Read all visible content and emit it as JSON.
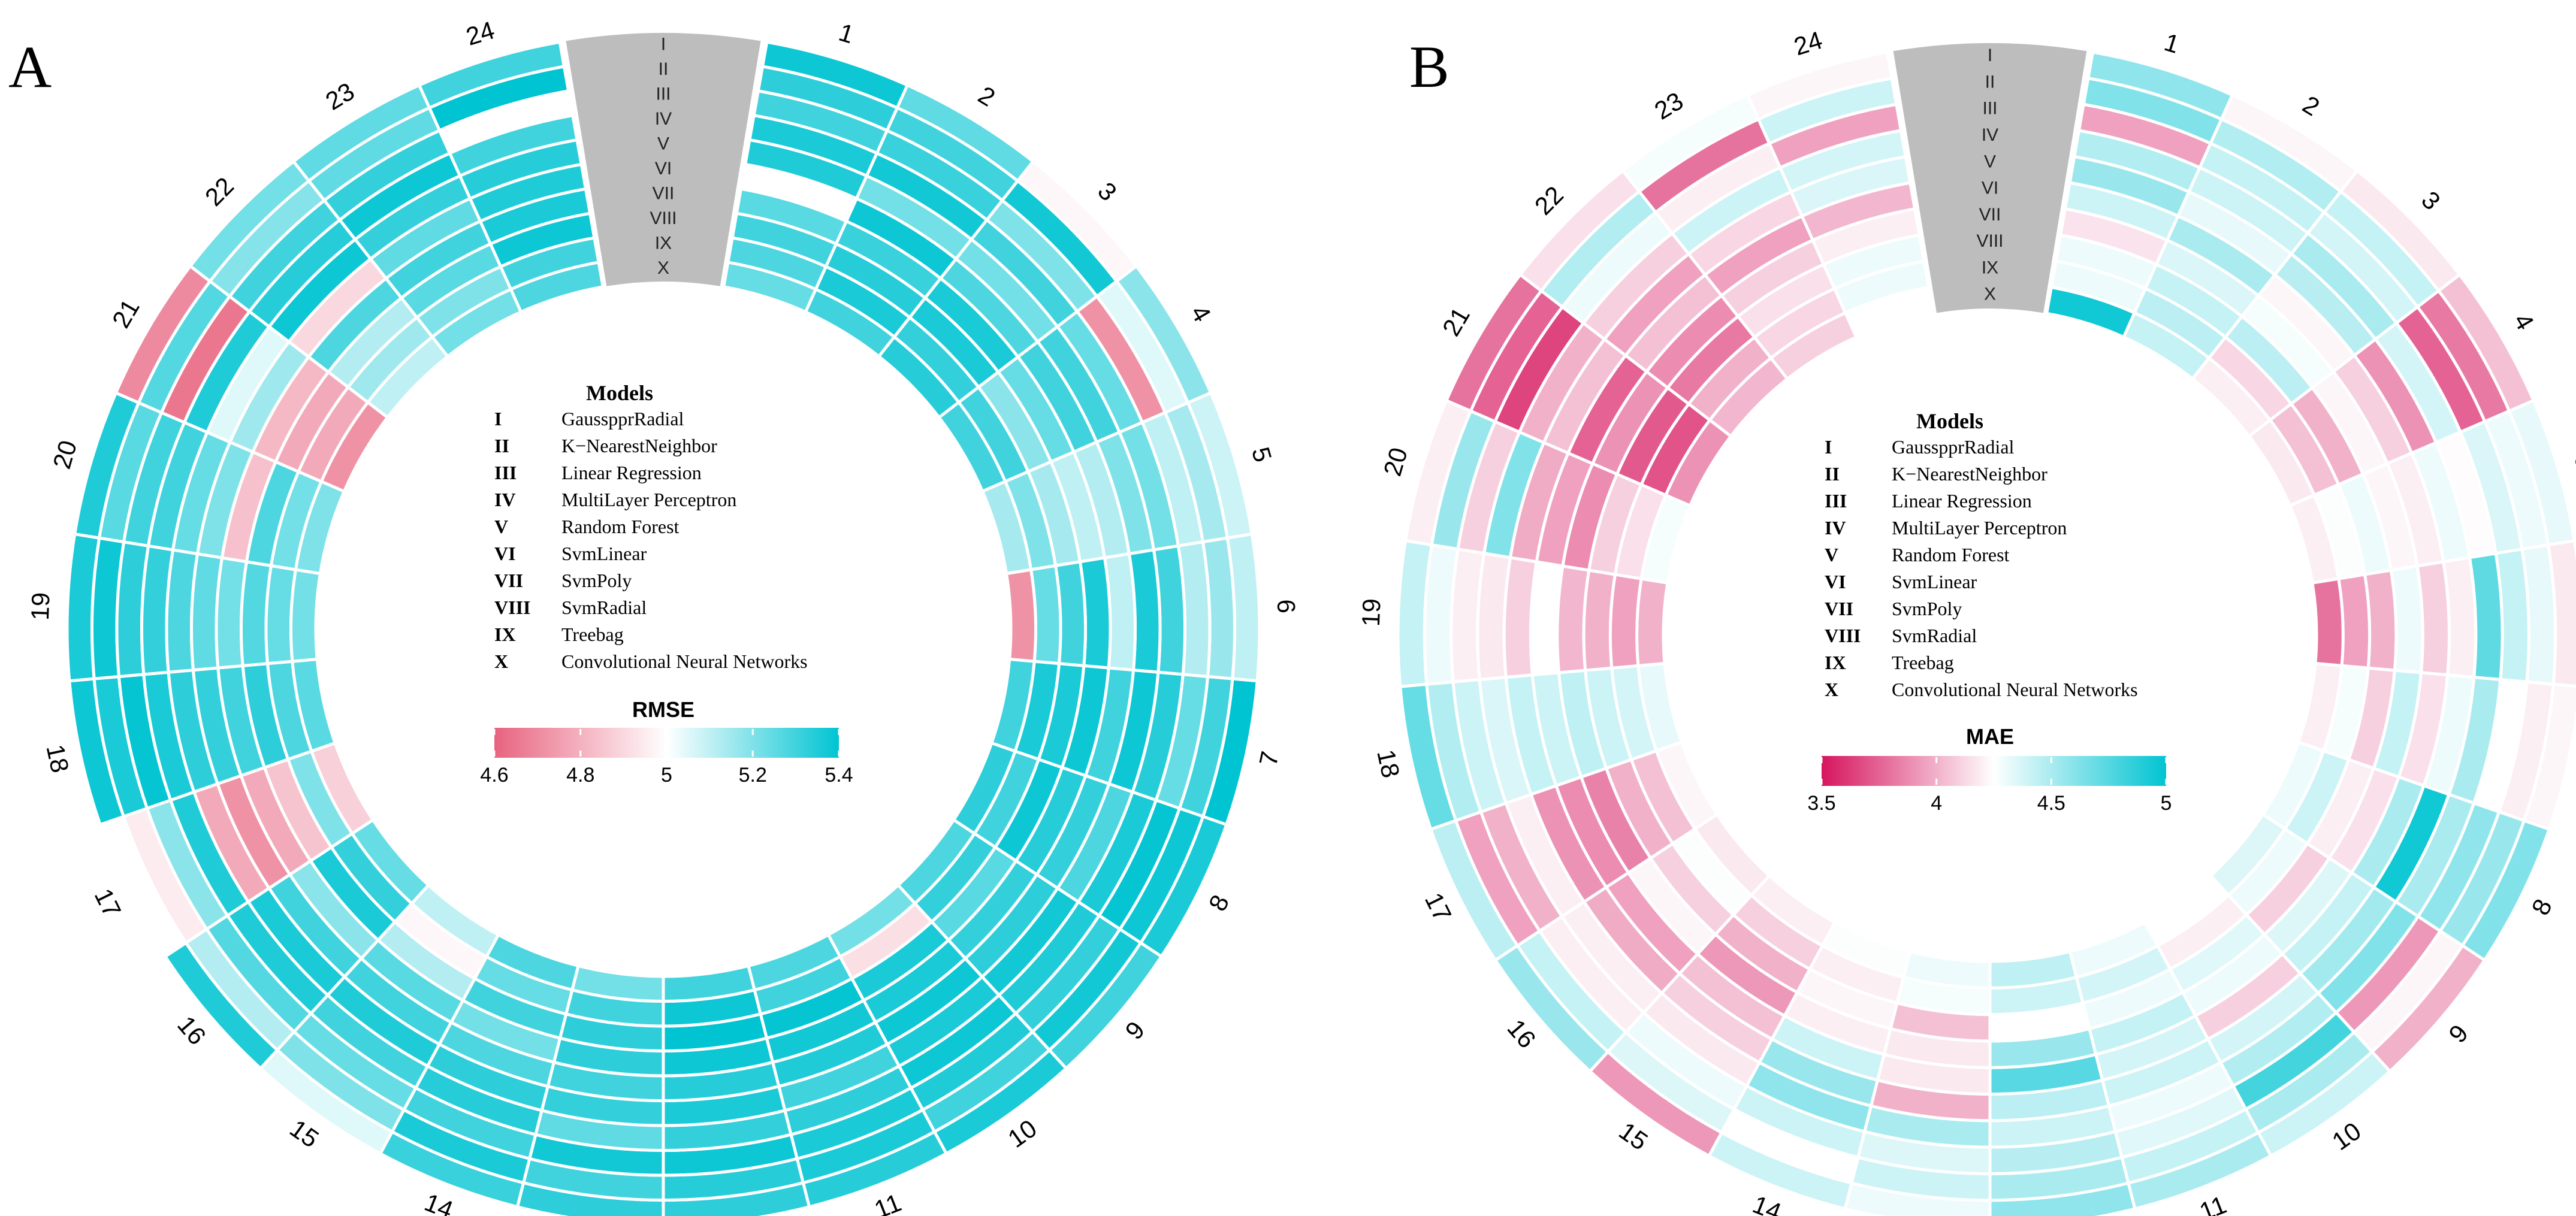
{
  "figure": {
    "panels": [
      {
        "letter": "A",
        "metric": "RMSE",
        "legend_title": "Models",
        "colorbar": {
          "min": 4.6,
          "max": 5.4,
          "mid": 5.0,
          "ticks": [
            4.6,
            4.8,
            5,
            5.2,
            5.4
          ],
          "tick_labels": [
            "4.6",
            "4.8",
            "5",
            "5.2",
            "5.4"
          ],
          "low_color": "#e8637f",
          "mid_color": "#ffffff",
          "high_color": "#00c4d2"
        }
      },
      {
        "letter": "B",
        "metric": "MAE",
        "legend_title": "Models",
        "colorbar": {
          "min": 3.5,
          "max": 5.0,
          "mid": 4.25,
          "ticks": [
            3.5,
            4,
            4.5,
            5
          ],
          "tick_labels": [
            "3.5",
            "4",
            "4.5",
            "5"
          ],
          "low_color": "#d6155e",
          "mid_color": "#ffffff",
          "high_color": "#00c4d2"
        }
      }
    ]
  },
  "models": [
    {
      "key": "I",
      "name": "GausspprRadial"
    },
    {
      "key": "II",
      "name": "K−NearestNeighbor"
    },
    {
      "key": "III",
      "name": "Linear  Regression"
    },
    {
      "key": "IV",
      "name": "MultiLayer  Perceptron"
    },
    {
      "key": "V",
      "name": "Random   Forest"
    },
    {
      "key": "VI",
      "name": "SvmLinear"
    },
    {
      "key": "VII",
      "name": "SvmPoly"
    },
    {
      "key": "VIII",
      "name": "SvmRadial"
    },
    {
      "key": "IX",
      "name": "Treebag"
    },
    {
      "key": "X",
      "name": "Convolutional  Neural  Networks"
    }
  ],
  "chart_data": [
    {
      "type": "heatmap",
      "layout": "circular",
      "title": "A",
      "metric": "RMSE",
      "categories": [
        "1",
        "2",
        "3",
        "4",
        "5",
        "6",
        "7",
        "8",
        "9",
        "10",
        "11",
        "12",
        "13",
        "14",
        "15",
        "16",
        "17",
        "18",
        "19",
        "20",
        "21",
        "22",
        "23",
        "24"
      ],
      "series_order": "outer ring to inner ring",
      "series": [
        {
          "name": "I",
          "values": [
            5.38,
            5.25,
            4.98,
            5.18,
            5.08,
            5.1,
            5.4,
            5.36,
            5.3,
            5.36,
            5.34,
            5.33,
            5.33,
            5.31,
            5.05,
            5.35,
            5.0,
            5.38,
            5.36,
            5.35,
            4.7,
            5.22,
            5.25,
            5.3
          ]
        },
        {
          "name": "II",
          "values": [
            5.33,
            5.3,
            5.37,
            5.05,
            5.14,
            5.16,
            5.3,
            5.38,
            5.37,
            5.3,
            5.36,
            5.34,
            5.3,
            5.36,
            5.2,
            5.12,
            4.95,
            5.36,
            5.38,
            5.26,
            5.27,
            5.19,
            5.25,
            5.4
          ]
        },
        {
          "name": "III",
          "values": [
            5.3,
            5.31,
            5.2,
            4.72,
            5.1,
            5.12,
            5.24,
            5.39,
            5.32,
            5.35,
            5.36,
            5.38,
            5.37,
            5.3,
            5.24,
            5.27,
            5.18,
            5.39,
            5.33,
            5.3,
            4.65,
            5.3,
            5.32,
            5.0
          ]
        },
        {
          "name": "IV",
          "values": [
            5.36,
            5.37,
            5.3,
            5.24,
            5.22,
            5.3,
            5.34,
            5.36,
            5.35,
            5.38,
            5.33,
            5.32,
            5.25,
            5.34,
            5.3,
            5.35,
            5.35,
            5.36,
            5.32,
            5.3,
            5.35,
            5.34,
            5.38,
            5.3
          ]
        },
        {
          "name": "V",
          "values": [
            5.35,
            5.22,
            5.22,
            5.3,
            5.2,
            5.36,
            5.38,
            5.28,
            5.37,
            5.36,
            5.3,
            5.36,
            5.32,
            5.33,
            5.35,
            5.36,
            4.78,
            5.33,
            5.28,
            5.24,
            5.05,
            5.38,
            5.32,
            5.34
          ]
        },
        {
          "name": "VI",
          "values": [
            5.0,
            5.38,
            5.28,
            5.3,
            5.12,
            5.1,
            5.3,
            5.32,
            5.33,
            5.38,
            5.35,
            5.34,
            5.3,
            5.28,
            5.3,
            5.3,
            4.72,
            5.32,
            5.25,
            5.2,
            5.15,
            4.9,
            5.25,
            5.35
          ]
        },
        {
          "name": "VII",
          "values": [
            5.26,
            5.31,
            5.36,
            5.24,
            5.1,
            5.36,
            5.38,
            5.34,
            5.32,
            5.36,
            5.37,
            5.38,
            5.33,
            5.22,
            5.26,
            5.18,
            4.78,
            5.3,
            5.22,
            4.84,
            4.82,
            5.28,
            5.3,
            5.36
          ]
        },
        {
          "name": "VIII",
          "values": [
            5.3,
            5.34,
            5.36,
            5.18,
            5.14,
            5.3,
            5.36,
            5.38,
            5.26,
            5.36,
            5.39,
            5.4,
            5.33,
            5.3,
            5.12,
            5.36,
            4.85,
            5.33,
            5.27,
            5.28,
            4.78,
            5.12,
            5.26,
            5.38
          ]
        },
        {
          "name": "IX",
          "values": [
            5.28,
            5.36,
            5.32,
            5.3,
            5.2,
            5.24,
            5.36,
            5.3,
            5.32,
            4.92,
            5.3,
            5.38,
            5.3,
            5.24,
            4.98,
            5.32,
            5.2,
            5.28,
            5.24,
            5.22,
            4.78,
            5.15,
            5.2,
            5.3
          ]
        },
        {
          "name": "X",
          "values": [
            5.24,
            5.3,
            5.34,
            5.3,
            5.14,
            4.72,
            5.3,
            5.33,
            5.28,
            5.22,
            5.28,
            5.3,
            5.22,
            5.28,
            5.1,
            5.24,
            4.88,
            5.26,
            5.22,
            5.2,
            4.72,
            5.1,
            5.22,
            5.28
          ]
        }
      ],
      "color_range": [
        4.6,
        5.4
      ],
      "legend": "center"
    },
    {
      "type": "heatmap",
      "layout": "circular",
      "title": "B",
      "metric": "MAE",
      "categories": [
        "1",
        "2",
        "3",
        "4",
        "5",
        "6",
        "7",
        "8",
        "9",
        "10",
        "11",
        "12",
        "13",
        "14",
        "15",
        "16",
        "17",
        "18",
        "19",
        "20",
        "21",
        "22",
        "23",
        "24"
      ],
      "series_order": "outer ring to inner ring",
      "series": [
        {
          "name": "I",
          "values": [
            4.58,
            4.22,
            4.18,
            4.05,
            4.32,
            4.18,
            4.22,
            4.62,
            4.0,
            4.4,
            4.5,
            4.58,
            4.3,
            4.4,
            3.92,
            4.55,
            4.45,
            4.7,
            4.42,
            4.2,
            3.8,
            4.15,
            4.28,
            4.22
          ]
        },
        {
          "name": "II",
          "values": [
            4.62,
            4.48,
            4.42,
            3.82,
            4.3,
            4.32,
            4.2,
            4.55,
            4.22,
            4.5,
            4.42,
            4.5,
            4.4,
            4.25,
            4.35,
            4.42,
            3.95,
            4.48,
            4.3,
            4.55,
            3.75,
            4.48,
            3.8,
            4.4
          ]
        },
        {
          "name": "III",
          "values": [
            3.95,
            4.42,
            4.38,
            3.75,
            4.36,
            4.42,
            4.25,
            4.58,
            3.92,
            4.8,
            4.34,
            4.46,
            4.35,
            4.4,
            4.3,
            4.2,
            4.0,
            4.4,
            4.2,
            4.1,
            3.65,
            4.3,
            4.2,
            3.95
          ]
        },
        {
          "name": "IV",
          "values": [
            4.48,
            4.4,
            4.5,
            4.38,
            4.24,
            4.72,
            4.5,
            4.5,
            4.62,
            4.48,
            4.3,
            4.4,
            4.5,
            4.58,
            4.18,
            4.2,
            4.2,
            4.36,
            4.18,
            4.62,
            4.0,
            4.1,
            4.4,
            4.38
          ]
        },
        {
          "name": "V",
          "values": [
            4.55,
            4.32,
            4.46,
            3.9,
            4.3,
            4.2,
            4.3,
            4.95,
            4.52,
            4.38,
            4.4,
            4.45,
            4.0,
            4.55,
            4.1,
            3.98,
            3.9,
            4.42,
            4.1,
            3.98,
            4.05,
            3.95,
            4.12,
            4.36
          ]
        },
        {
          "name": "VI",
          "values": [
            4.4,
            4.5,
            4.22,
            4.1,
            4.2,
            4.1,
            4.15,
            4.5,
            4.42,
            4.1,
            4.38,
            4.74,
            4.18,
            4.4,
            4.05,
            3.95,
            3.88,
            4.4,
            4.25,
            3.95,
            3.75,
            4.05,
            3.95,
            4.02
          ]
        },
        {
          "name": "VII",
          "values": [
            4.16,
            4.36,
            4.28,
            4.22,
            4.22,
            4.3,
            4.42,
            4.15,
            4.35,
            4.3,
            4.42,
            4.55,
            4.18,
            4.2,
            3.92,
            4.22,
            3.85,
            4.44,
            4.02,
            3.88,
            3.9,
            3.88,
            4.1,
            4.2
          ]
        },
        {
          "name": "VIII",
          "values": [
            4.3,
            4.42,
            4.45,
            4.0,
            4.3,
            4.0,
            4.1,
            4.2,
            4.1,
            4.34,
            4.3,
            4.25,
            4.05,
            4.22,
            4.0,
            4.1,
            4.0,
            4.4,
            4.0,
            4.1,
            3.72,
            3.82,
            4.15,
            4.3
          ]
        },
        {
          "name": "IX",
          "values": [
            4.3,
            4.45,
            4.12,
            4.05,
            4.26,
            3.95,
            4.28,
            4.4,
            4.3,
            4.2,
            4.38,
            4.4,
            4.28,
            4.2,
            4.1,
            4.26,
            4.05,
            4.38,
            3.95,
            4.15,
            3.7,
            4.0,
            4.12,
            4.3
          ]
        },
        {
          "name": "X",
          "values": [
            4.95,
            4.42,
            4.2,
            4.18,
            4.2,
            3.8,
            4.2,
            4.3,
            4.35,
            4.25,
            4.3,
            4.44,
            4.3,
            4.26,
            4.2,
            4.18,
            4.22,
            4.32,
            4.0,
            4.28,
            3.9,
            4.02,
            4.1,
            4.25
          ]
        }
      ],
      "color_range": [
        3.5,
        5.0
      ],
      "legend": "center"
    }
  ]
}
